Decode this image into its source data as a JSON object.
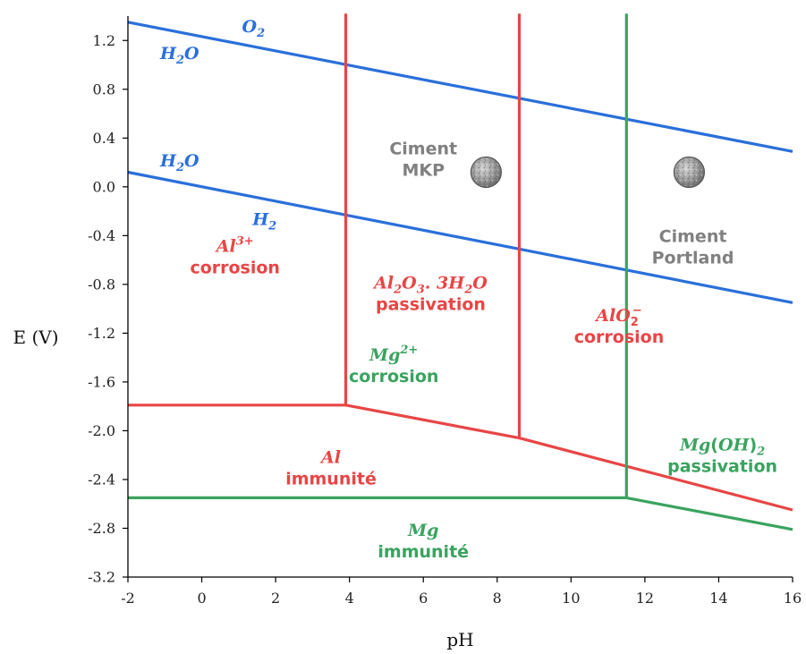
{
  "chart_data": {
    "type": "line",
    "title": "",
    "xlabel": "pH",
    "ylabel": "E (V)",
    "xlim": [
      -2,
      16
    ],
    "ylim": [
      -3.2,
      1.4
    ],
    "x_ticks": [
      -2,
      0,
      2,
      4,
      6,
      8,
      10,
      12,
      14,
      16
    ],
    "x_tick_labels": [
      "-2",
      "0",
      "2",
      "4",
      "6",
      "8",
      "10",
      "12",
      "14",
      "16"
    ],
    "y_ticks": [
      1.2,
      0.8,
      0.4,
      0.0,
      -0.4,
      -0.8,
      -1.2,
      -1.6,
      -2.0,
      -2.4,
      -2.8,
      -3.2
    ],
    "y_tick_labels": [
      "1.2",
      "0.8",
      "0.4",
      "0.0",
      "-0.4",
      "-0.8",
      "-1.2",
      "-1.6",
      "-2.0",
      "-2.4",
      "-2.8",
      "-3.2"
    ],
    "grid": false,
    "colors": {
      "water": "#2a6fdb",
      "al": "#e84545",
      "mg": "#3aa35f",
      "cement": "#808080",
      "axis": "#000000"
    },
    "series": [
      {
        "group": "water",
        "points": [
          [
            -2,
            1.35
          ],
          [
            16,
            0.29
          ]
        ]
      },
      {
        "group": "water",
        "points": [
          [
            -2,
            0.12
          ],
          [
            16,
            -0.95
          ]
        ]
      },
      {
        "group": "al",
        "points": [
          [
            -2,
            -1.79
          ],
          [
            3.9,
            -1.79
          ]
        ]
      },
      {
        "group": "al",
        "points": [
          [
            3.9,
            -1.79
          ],
          [
            8.6,
            -2.06
          ],
          [
            16,
            -2.65
          ]
        ]
      },
      {
        "group": "al",
        "points": [
          [
            3.9,
            -1.79
          ],
          [
            3.9,
            1.42
          ]
        ]
      },
      {
        "group": "al",
        "points": [
          [
            8.6,
            -2.06
          ],
          [
            8.6,
            1.42
          ]
        ]
      },
      {
        "group": "mg",
        "points": [
          [
            -2,
            -2.55
          ],
          [
            11.5,
            -2.55
          ],
          [
            16,
            -2.81
          ]
        ]
      },
      {
        "group": "mg",
        "points": [
          [
            11.5,
            -2.55
          ],
          [
            11.5,
            1.42
          ]
        ]
      }
    ],
    "annotations": [
      {
        "group": "water",
        "style": "chem",
        "x": 1.4,
        "y": 1.32,
        "lines": [
          [
            [
              "b",
              "O"
            ],
            [
              "sub",
              "2"
            ]
          ]
        ]
      },
      {
        "group": "water",
        "style": "chem",
        "x": -0.6,
        "y": 1.1,
        "lines": [
          [
            [
              "b",
              "H"
            ],
            [
              "sub",
              "2"
            ],
            [
              "b",
              "O"
            ]
          ]
        ]
      },
      {
        "group": "water",
        "style": "chem",
        "x": -0.6,
        "y": 0.22,
        "lines": [
          [
            [
              "b",
              "H"
            ],
            [
              "sub",
              "2"
            ],
            [
              "b",
              "O"
            ]
          ]
        ]
      },
      {
        "group": "water",
        "style": "chem",
        "x": 1.7,
        "y": -0.26,
        "lines": [
          [
            [
              "b",
              "H"
            ],
            [
              "sub",
              "2"
            ]
          ]
        ]
      },
      {
        "group": "al",
        "style": "chem",
        "x": 0.9,
        "y": -0.57,
        "lines": [
          [
            [
              "b",
              "Al"
            ],
            [
              "sup",
              "3+"
            ]
          ],
          [
            [
              "t",
              "corrosion"
            ]
          ]
        ]
      },
      {
        "group": "al",
        "style": "chem",
        "x": 6.2,
        "y": -0.87,
        "lines": [
          [
            [
              "b",
              "Al"
            ],
            [
              "sub",
              "2"
            ],
            [
              "b",
              "O"
            ],
            [
              "sub",
              "3"
            ],
            [
              "b",
              ". 3H"
            ],
            [
              "sub",
              "2"
            ],
            [
              "b",
              "O"
            ]
          ],
          [
            [
              "t",
              "passivation"
            ]
          ]
        ]
      },
      {
        "group": "al",
        "style": "chem",
        "x": 11.3,
        "y": -1.14,
        "lines": [
          [
            [
              "b",
              "AlO"
            ],
            [
              "subsup",
              "2",
              "−"
            ]
          ],
          [
            [
              "t",
              "corrosion"
            ]
          ]
        ]
      },
      {
        "group": "al",
        "style": "chem",
        "x": 3.5,
        "y": -2.3,
        "lines": [
          [
            [
              "b",
              "Al"
            ]
          ],
          [
            [
              "t",
              "immunité"
            ]
          ]
        ]
      },
      {
        "group": "mg",
        "style": "chem",
        "x": 5.2,
        "y": -1.46,
        "lines": [
          [
            [
              "b",
              "Mg"
            ],
            [
              "sup",
              "2+"
            ]
          ],
          [
            [
              "t",
              "corrosion"
            ]
          ]
        ]
      },
      {
        "group": "mg",
        "style": "chem",
        "x": 14.1,
        "y": -2.2,
        "lines": [
          [
            [
              "b",
              "Mg"
            ],
            [
              "t",
              "("
            ],
            [
              "b",
              "OH"
            ],
            [
              "t",
              ")"
            ],
            [
              "sub",
              "2"
            ]
          ],
          [
            [
              "t",
              "passivation"
            ]
          ]
        ]
      },
      {
        "group": "mg",
        "style": "chem",
        "x": 6.0,
        "y": -2.9,
        "lines": [
          [
            [
              "b",
              "Mg"
            ]
          ],
          [
            [
              "t",
              "immunité"
            ]
          ]
        ]
      },
      {
        "group": "cement",
        "style": "plain",
        "x": 6.0,
        "y": 0.23,
        "lines": [
          [
            [
              "t",
              "Ciment"
            ]
          ],
          [
            [
              "t",
              "MKP"
            ]
          ]
        ]
      },
      {
        "group": "cement",
        "style": "plain",
        "x": 13.3,
        "y": -0.49,
        "lines": [
          [
            [
              "t",
              "Ciment"
            ]
          ],
          [
            [
              "t",
              "Portland"
            ]
          ]
        ]
      }
    ],
    "markers": [
      {
        "name": "cement-mkp-marker",
        "x": 7.7,
        "y": 0.12
      },
      {
        "name": "cement-portland-marker",
        "x": 13.2,
        "y": 0.12
      }
    ]
  }
}
